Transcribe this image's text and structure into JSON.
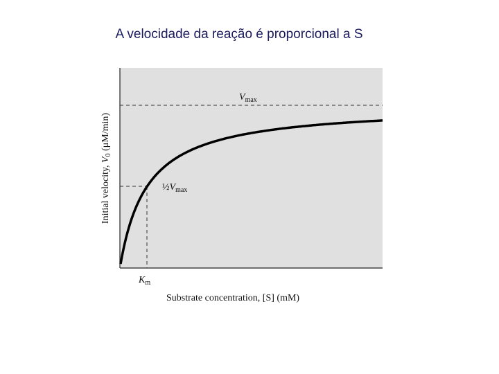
{
  "title": "A velocidade da reação é proporcional a S",
  "figure": {
    "y_axis_label": {
      "text": "Initial velocity, ",
      "symbol": "V",
      "subscript": "0",
      "units": " (μM/min)"
    },
    "x_axis_label": {
      "text": "Substrate concentration, [S] (mM)"
    },
    "vmax_label": {
      "symbol": "V",
      "subscript": "max"
    },
    "half_vmax_label": {
      "fraction": "½",
      "symbol": "V",
      "subscript": "max"
    },
    "km_label": {
      "symbol": "K",
      "subscript": "m"
    }
  }
}
